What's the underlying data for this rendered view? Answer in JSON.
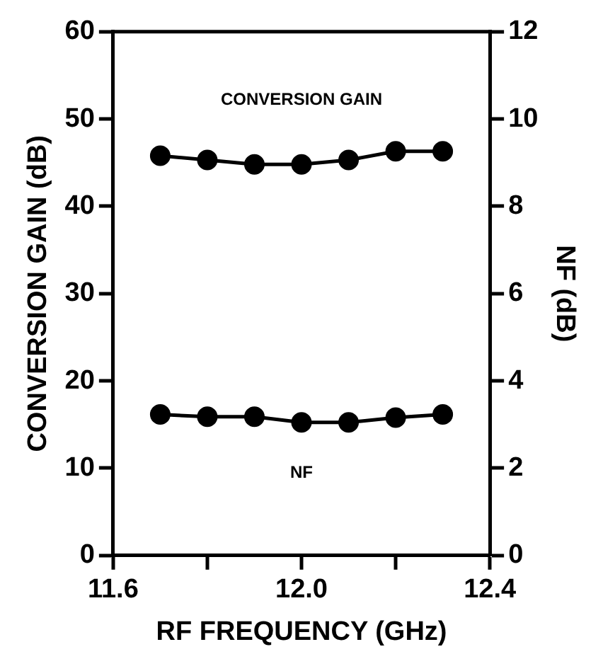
{
  "chart_data": {
    "type": "line",
    "xlabel": "RF FREQUENCY (GHz)",
    "ylabel": "CONVERSION GAIN (dB)",
    "y2label": "NF (dB)",
    "x": [
      11.7,
      11.8,
      11.9,
      12.0,
      12.1,
      12.2,
      12.3
    ],
    "series": [
      {
        "name": "CONVERSION GAIN",
        "color": "#000000",
        "values": [
          45.8,
          45.3,
          44.8,
          44.8,
          45.3,
          46.3,
          46.3
        ]
      },
      {
        "name": "NF",
        "color": "#000000",
        "axis": "y2",
        "values": [
          3.23,
          3.18,
          3.18,
          3.05,
          3.05,
          3.16,
          3.23
        ]
      }
    ],
    "xlim": [
      11.6,
      12.4
    ],
    "xticks": [
      11.6,
      {
        "value": 11.8,
        "label": null
      },
      {
        "value": 12,
        "label": "12.0"
      },
      {
        "value": 12.2,
        "label": null
      },
      12.4
    ],
    "ylim": [
      0,
      60
    ],
    "yticks": [
      0,
      10,
      20,
      30,
      40,
      50,
      60
    ],
    "y2lim": [
      0,
      12
    ],
    "y2ticks": [
      0,
      2,
      4,
      6,
      8,
      10,
      12
    ],
    "marker": "circle",
    "line_style": "solid",
    "grid": false,
    "legend": false
  }
}
